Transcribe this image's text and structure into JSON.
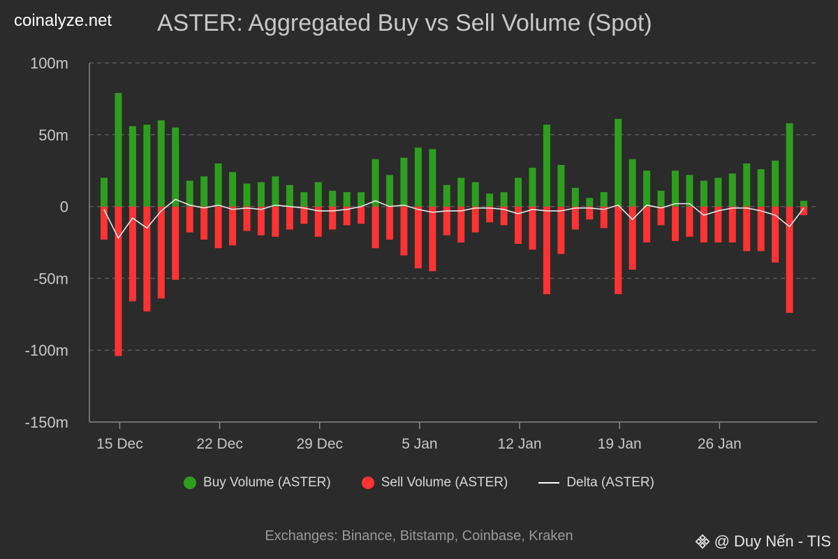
{
  "brand": "coinalyze.net",
  "title": "ASTER: Aggregated Buy vs Sell Volume (Spot)",
  "legend": {
    "buy": "Buy Volume (ASTER)",
    "sell": "Sell Volume (ASTER)",
    "delta": "Delta (ASTER)"
  },
  "footer": "Exchanges: Binance, Bitstamp, Coinbase, Kraken",
  "watermark": "@ Duy Nến - TIS",
  "colors": {
    "buy": "#2e9e1f",
    "sell": "#ff3333",
    "delta": "#e8e8e8",
    "grid": "#5a5a5a",
    "axis": "#888888",
    "text": "#c8c8c8"
  },
  "chart_data": {
    "type": "bar",
    "title": "ASTER: Aggregated Buy vs Sell Volume (Spot)",
    "ylabel": "",
    "xlabel": "",
    "ylim": [
      -150,
      100
    ],
    "yunit": "m",
    "yticks": [
      100,
      50,
      0,
      -50,
      -100,
      -150
    ],
    "ytick_labels": [
      "100m",
      "50m",
      "0",
      "-50m",
      "-100m",
      "-150m"
    ],
    "xticks": [
      {
        "label": "15 Dec",
        "index": 1
      },
      {
        "label": "22 Dec",
        "index": 8
      },
      {
        "label": "29 Dec",
        "index": 15
      },
      {
        "label": "5 Jan",
        "index": 22
      },
      {
        "label": "12 Jan",
        "index": 29
      },
      {
        "label": "19 Jan",
        "index": 36
      },
      {
        "label": "26 Jan",
        "index": 43
      }
    ],
    "categories": [
      "14 Dec",
      "15 Dec",
      "16 Dec",
      "17 Dec",
      "18 Dec",
      "19 Dec",
      "20 Dec",
      "21 Dec",
      "22 Dec",
      "23 Dec",
      "24 Dec",
      "25 Dec",
      "26 Dec",
      "27 Dec",
      "28 Dec",
      "29 Dec",
      "30 Dec",
      "31 Dec",
      "1 Jan",
      "2 Jan",
      "3 Jan",
      "4 Jan",
      "5 Jan",
      "6 Jan",
      "7 Jan",
      "8 Jan",
      "9 Jan",
      "10 Jan",
      "11 Jan",
      "12 Jan",
      "13 Jan",
      "14 Jan",
      "15 Jan",
      "16 Jan",
      "17 Jan",
      "18 Jan",
      "19 Jan",
      "20 Jan",
      "21 Jan",
      "22 Jan",
      "23 Jan",
      "24 Jan",
      "25 Jan",
      "26 Jan",
      "27 Jan",
      "28 Jan",
      "29 Jan",
      "30 Jan",
      "31 Jan",
      "1 Feb"
    ],
    "series": [
      {
        "name": "Buy Volume (ASTER)",
        "values": [
          20,
          79,
          56,
          57,
          60,
          55,
          18,
          21,
          30,
          24,
          16,
          17,
          21,
          15,
          10,
          17,
          11,
          10,
          10,
          33,
          22,
          34,
          41,
          40,
          15,
          20,
          17,
          9,
          10,
          20,
          27,
          57,
          29,
          13,
          6,
          10,
          61,
          33,
          25,
          11,
          25,
          22,
          18,
          20,
          23,
          30,
          26,
          32,
          58,
          4
        ]
      },
      {
        "name": "Sell Volume (ASTER)",
        "values": [
          -23,
          -104,
          -66,
          -73,
          -64,
          -51,
          -18,
          -23,
          -29,
          -27,
          -17,
          -20,
          -21,
          -16,
          -12,
          -21,
          -16,
          -13,
          -12,
          -29,
          -23,
          -34,
          -43,
          -45,
          -20,
          -25,
          -18,
          -11,
          -13,
          -26,
          -30,
          -61,
          -33,
          -16,
          -9,
          -15,
          -61,
          -44,
          -25,
          -13,
          -24,
          -21,
          -25,
          -25,
          -25,
          -31,
          -31,
          -39,
          -74,
          -6
        ]
      },
      {
        "name": "Delta (ASTER)",
        "values": [
          -2,
          -22,
          -8,
          -15,
          -3,
          5,
          1,
          -1,
          1,
          -2,
          -1,
          -2,
          1,
          0,
          -1,
          -3,
          -3,
          -2,
          0,
          4,
          0,
          1,
          -2,
          -4,
          -3,
          -3,
          -1,
          -1,
          -2,
          -5,
          -2,
          -3,
          -3,
          -1,
          -1,
          -2,
          1,
          -9,
          1,
          -1,
          2,
          2,
          -6,
          -3,
          -1,
          -1,
          -3,
          -6,
          -14,
          -1
        ]
      }
    ]
  }
}
